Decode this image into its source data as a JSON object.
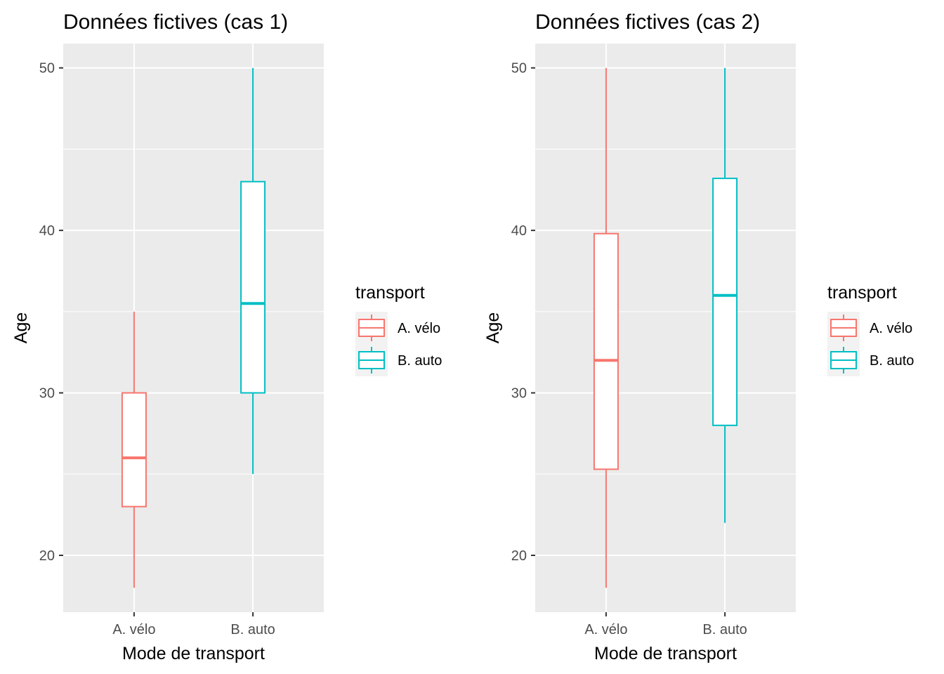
{
  "chart_data": [
    {
      "type": "boxplot",
      "title": "Données fictives (cas 1)",
      "xlabel": "Mode de transport",
      "ylabel": "Age",
      "ylim": [
        16.5,
        51.5
      ],
      "yticks": [
        20,
        30,
        40,
        50
      ],
      "categories": [
        "A. vélo",
        "B. auto"
      ],
      "legend": {
        "title": "transport",
        "position": "right",
        "entries": [
          "A. vélo",
          "B. auto"
        ]
      },
      "series": [
        {
          "name": "A. vélo",
          "color": "#F8766D",
          "min": 18,
          "q1": 23,
          "median": 26,
          "q3": 30,
          "max": 35
        },
        {
          "name": "B. auto",
          "color": "#00BFC4",
          "min": 25,
          "q1": 30,
          "median": 35.5,
          "q3": 43,
          "max": 50
        }
      ],
      "grid": true
    },
    {
      "type": "boxplot",
      "title": "Données fictives (cas 2)",
      "xlabel": "Mode de transport",
      "ylabel": "Age",
      "ylim": [
        16.5,
        51.5
      ],
      "yticks": [
        20,
        30,
        40,
        50
      ],
      "categories": [
        "A. vélo",
        "B. auto"
      ],
      "legend": {
        "title": "transport",
        "position": "right",
        "entries": [
          "A. vélo",
          "B. auto"
        ]
      },
      "series": [
        {
          "name": "A. vélo",
          "color": "#F8766D",
          "min": 18,
          "q1": 25.3,
          "median": 32,
          "q3": 39.8,
          "max": 50
        },
        {
          "name": "B. auto",
          "color": "#00BFC4",
          "min": 22,
          "q1": 28,
          "median": 36,
          "q3": 43.2,
          "max": 50
        }
      ],
      "grid": true
    }
  ]
}
